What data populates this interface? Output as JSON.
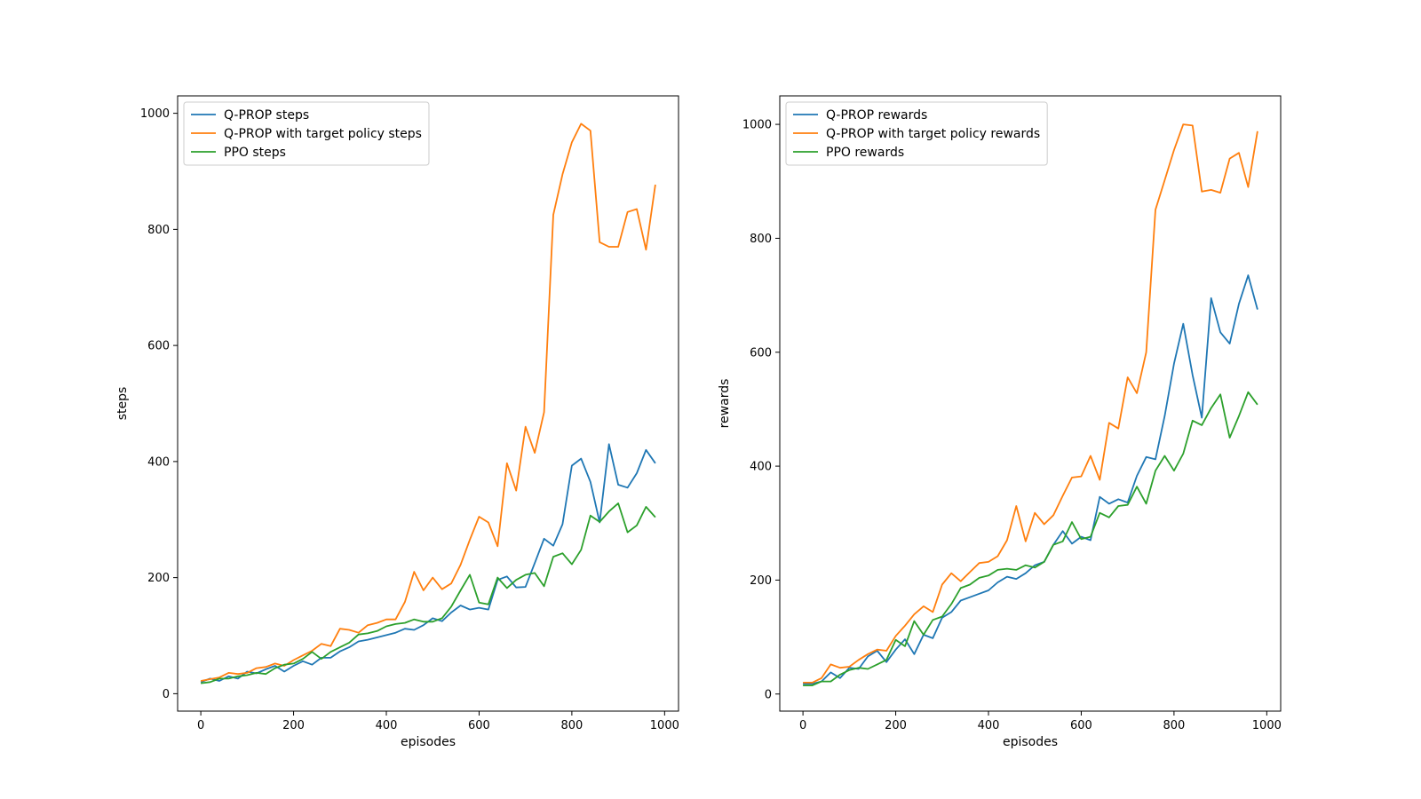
{
  "colors": {
    "blue": "#1f77b4",
    "orange": "#ff7f0e",
    "green": "#2ca02c"
  },
  "chart_data": [
    {
      "type": "line",
      "title": "",
      "xlabel": "episodes",
      "ylabel": "steps",
      "xlim": [
        -50,
        1030
      ],
      "ylim": [
        -30,
        1030
      ],
      "xticks": [
        0,
        200,
        400,
        600,
        800,
        1000
      ],
      "yticks": [
        0,
        200,
        400,
        600,
        800,
        1000
      ],
      "legend": "top-left",
      "grid": false,
      "x": [
        0,
        20,
        40,
        60,
        80,
        100,
        120,
        140,
        160,
        180,
        200,
        220,
        240,
        260,
        280,
        300,
        320,
        340,
        360,
        380,
        400,
        420,
        440,
        460,
        480,
        500,
        520,
        540,
        560,
        580,
        600,
        620,
        640,
        660,
        680,
        700,
        720,
        740,
        760,
        780,
        800,
        820,
        840,
        860,
        880,
        900,
        920,
        940,
        960,
        980
      ],
      "series": [
        {
          "name": "Q-PROP steps",
          "color": "#1f77b4",
          "values": [
            20,
            26,
            22,
            30,
            26,
            38,
            35,
            42,
            48,
            38,
            48,
            56,
            50,
            62,
            62,
            73,
            80,
            90,
            93,
            97,
            101,
            105,
            112,
            110,
            118,
            130,
            125,
            140,
            152,
            145,
            148,
            145,
            196,
            202,
            183,
            184,
            225,
            267,
            255,
            292,
            393,
            405,
            365,
            295,
            430,
            360,
            355,
            380,
            420,
            397
          ]
        },
        {
          "name": "Q-PROP with target policy steps",
          "color": "#ff7f0e",
          "values": [
            22,
            25,
            28,
            36,
            34,
            36,
            44,
            46,
            52,
            48,
            58,
            66,
            74,
            86,
            82,
            112,
            110,
            105,
            118,
            122,
            128,
            128,
            158,
            210,
            178,
            200,
            180,
            190,
            222,
            265,
            305,
            295,
            254,
            397,
            350,
            460,
            415,
            485,
            825,
            895,
            950,
            982,
            970,
            778,
            770,
            770,
            830,
            835,
            765,
            877
          ]
        },
        {
          "name": "PPO steps",
          "color": "#2ca02c",
          "values": [
            18,
            20,
            26,
            26,
            30,
            32,
            36,
            34,
            44,
            50,
            52,
            60,
            72,
            60,
            72,
            80,
            88,
            102,
            104,
            108,
            116,
            120,
            122,
            128,
            124,
            124,
            130,
            150,
            178,
            205,
            157,
            154,
            200,
            182,
            196,
            205,
            208,
            185,
            236,
            242,
            223,
            248,
            307,
            296,
            314,
            328,
            278,
            290,
            322,
            304
          ]
        }
      ]
    },
    {
      "type": "line",
      "title": "",
      "xlabel": "episodes",
      "ylabel": "rewards",
      "xlim": [
        -50,
        1030
      ],
      "ylim": [
        -30,
        1050
      ],
      "xticks": [
        0,
        200,
        400,
        600,
        800,
        1000
      ],
      "yticks": [
        0,
        200,
        400,
        600,
        800,
        1000
      ],
      "legend": "top-left",
      "grid": false,
      "x": [
        0,
        20,
        40,
        60,
        80,
        100,
        120,
        140,
        160,
        180,
        200,
        220,
        240,
        260,
        280,
        300,
        320,
        340,
        360,
        380,
        400,
        420,
        440,
        460,
        480,
        500,
        520,
        540,
        560,
        580,
        600,
        620,
        640,
        660,
        680,
        700,
        720,
        740,
        760,
        780,
        800,
        820,
        840,
        860,
        880,
        900,
        920,
        940,
        960,
        980
      ],
      "series": [
        {
          "name": "Q-PROP rewards",
          "color": "#1f77b4",
          "values": [
            18,
            18,
            22,
            38,
            28,
            46,
            44,
            66,
            76,
            56,
            78,
            96,
            70,
            104,
            98,
            134,
            144,
            164,
            170,
            176,
            182,
            196,
            206,
            202,
            212,
            226,
            232,
            262,
            286,
            264,
            276,
            270,
            346,
            334,
            342,
            336,
            383,
            416,
            412,
            488,
            580,
            650,
            560,
            485,
            695,
            635,
            615,
            685,
            735,
            675
          ]
        },
        {
          "name": "Q-PROP with target policy rewards",
          "color": "#ff7f0e",
          "values": [
            20,
            20,
            28,
            52,
            46,
            48,
            60,
            70,
            78,
            76,
            102,
            120,
            140,
            154,
            144,
            192,
            212,
            198,
            214,
            230,
            232,
            242,
            270,
            330,
            268,
            318,
            298,
            314,
            348,
            380,
            382,
            418,
            376,
            476,
            466,
            556,
            528,
            600,
            850,
            902,
            955,
            1000,
            998,
            882,
            885,
            880,
            940,
            950,
            890,
            988
          ]
        },
        {
          "name": "PPO rewards",
          "color": "#2ca02c",
          "values": [
            15,
            15,
            22,
            22,
            34,
            42,
            46,
            44,
            52,
            60,
            95,
            84,
            128,
            104,
            130,
            136,
            158,
            186,
            192,
            204,
            208,
            218,
            220,
            218,
            226,
            222,
            232,
            262,
            268,
            302,
            272,
            276,
            318,
            310,
            330,
            332,
            364,
            334,
            392,
            418,
            392,
            422,
            480,
            472,
            502,
            526,
            450,
            488,
            530,
            508
          ]
        }
      ]
    }
  ]
}
